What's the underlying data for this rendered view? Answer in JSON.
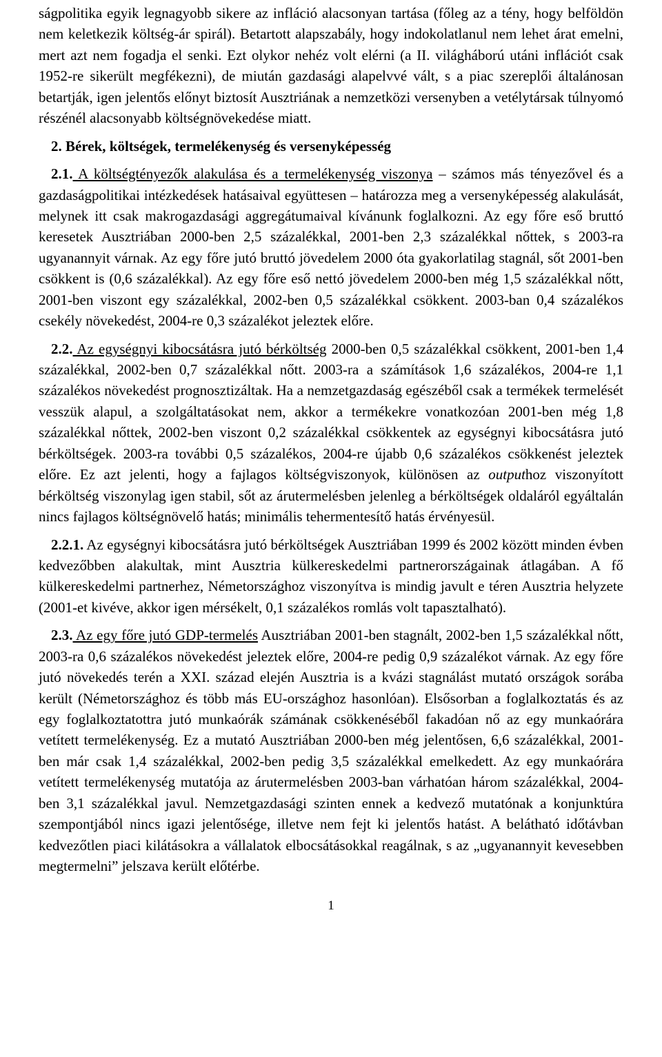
{
  "p1": "ságpolitika egyik legnagyobb sikere az infláció alacsonyan tartása (főleg az a tény, hogy belföldön nem keletkezik költség-ár spirál). Betartott alapszabály, hogy indokolatlanul nem lehet árat emelni, mert azt nem fogadja el senki. Ezt olykor nehéz volt elérni (a II. világháború utáni inflációt csak 1952-re sikerült megfékezni), de miután gazdasági alapelvvé vált, s a piac szereplői általánosan betartják, igen jelentős előnyt biztosít Ausztriának a nemzetközi versenyben a vetélytársak túlnyomó részénél alacsonyabb költségnövekedése miatt.",
  "h2": "2. Bérek, költségek, termelékenység és versenyképesség",
  "p2_lead_num": "2.1.",
  "p2_lead_rest": " A költségtényezők alakulása és a termelékenység viszonya",
  "p2_tail": " – számos más tényezővel és a gazdaságpolitikai intézkedések hatásaival együttesen – határozza meg a versenyképesség alakulását, melynek itt csak makrogazdasági aggregátumaival kívánunk foglalkozni. Az egy főre eső bruttó keresetek Ausztriában 2000-ben 2,5 százalékkal, 2001-ben 2,3 százalékkal nőttek, s 2003-ra ugyanannyit várnak. Az egy főre jutó bruttó jövedelem 2000 óta gyakorlatilag stagnál, sőt 2001-ben csökkent is (0,6 százalékkal). Az egy főre eső nettó jövedelem 2000-ben még 1,5 százalékkal nőtt, 2001-ben viszont egy százalékkal, 2002-ben 0,5 százalékkal csökkent. 2003-ban 0,4 százalékos csekély növekedést, 2004-re 0,3 százalékot jeleztek előre.",
  "p3_lead_num": "2.2.",
  "p3_lead_rest": " Az egységnyi kibocsátásra jutó bérköltség",
  "p3_mid1": " 2000-ben 0,5 százalékkal csökkent, 2001-ben 1,4 százalékkal, 2002-ben 0,7 százalékkal nőtt. 2003-ra a számítások 1,6 százalékos, 2004-re 1,1 százalékos növekedést prognosztizáltak. Ha a nemzetgazdaság egészéből csak a termékek termelését vesszük alapul, a szolgáltatásokat nem, akkor a termékekre vonatkozóan 2001-ben még 1,8 százalékkal nőttek, 2002-ben viszont 0,2 százalékkal csökkentek az egységnyi kibocsátásra jutó bérköltségek. 2003-ra további 0,5 százalékos, 2004-re újabb 0,6 százalékos csökkenést jeleztek előre. Ez azt jelenti, hogy a fajlagos költségviszonyok, különösen az ",
  "p3_italic": "output",
  "p3_mid2": "hoz viszonyított bérköltség viszonylag igen stabil, sőt az árutermelésben jelenleg a bérköltségek oldaláról egyáltalán nincs fajlagos költségnövelő hatás; minimális tehermentesítő hatás érvényesül.",
  "p4_lead": "2.2.1.",
  "p4_tail": " Az egységnyi kibocsátásra jutó bérköltségek Ausztriában 1999 és 2002 között minden évben kedvezőbben alakultak, mint Ausztria külkereskedelmi partnerországainak átlagában. A fő külkereskedelmi partnerhez, Németországhoz viszonyítva is mindig javult e téren Ausztria helyzete (2001-et kivéve, akkor igen mérsékelt, 0,1 százalékos romlás volt tapasztalható).",
  "p5_lead_num": "2.3.",
  "p5_lead_rest": " Az egy főre jutó GDP-termelés",
  "p5_tail": " Ausztriában 2001-ben stagnált, 2002-ben 1,5 százalékkal nőtt, 2003-ra 0,6 százalékos növekedést jeleztek előre, 2004-re pedig 0,9 százalékot várnak. Az egy főre jutó növekedés terén a XXI. század elején Ausztria is a kvázi stagnálást mutató országok sorába került (Németországhoz és több más EU-országhoz hasonlóan). Elsősorban a foglalkoztatás és az egy foglalkoztatottra jutó munkaórák számának csökkenéséből fakadóan nő az egy munkaórára vetített termelékenység. Ez a mutató Ausztriában 2000-ben még jelentősen, 6,6 százalékkal, 2001-ben már csak 1,4 százalékkal, 2002-ben pedig 3,5 százalékkal emelkedett. Az egy munkaórára vetített termelékenység mutatója az árutermelésben 2003-ban várhatóan három százalékkal, 2004-ben 3,1 százalékkal javul. Nemzetgazdasági szinten ennek a kedvező mutatónak a konjunktúra szempontjából nincs igazi jelentősége, illetve nem fejt ki jelentős hatást. A belátható időtávban kedvezőtlen piaci kilátásokra a vállalatok elbocsátásokkal reagálnak, s az „ugyanannyit kevesebben megtermelni” jelszava került előtérbe.",
  "page_number": "1"
}
